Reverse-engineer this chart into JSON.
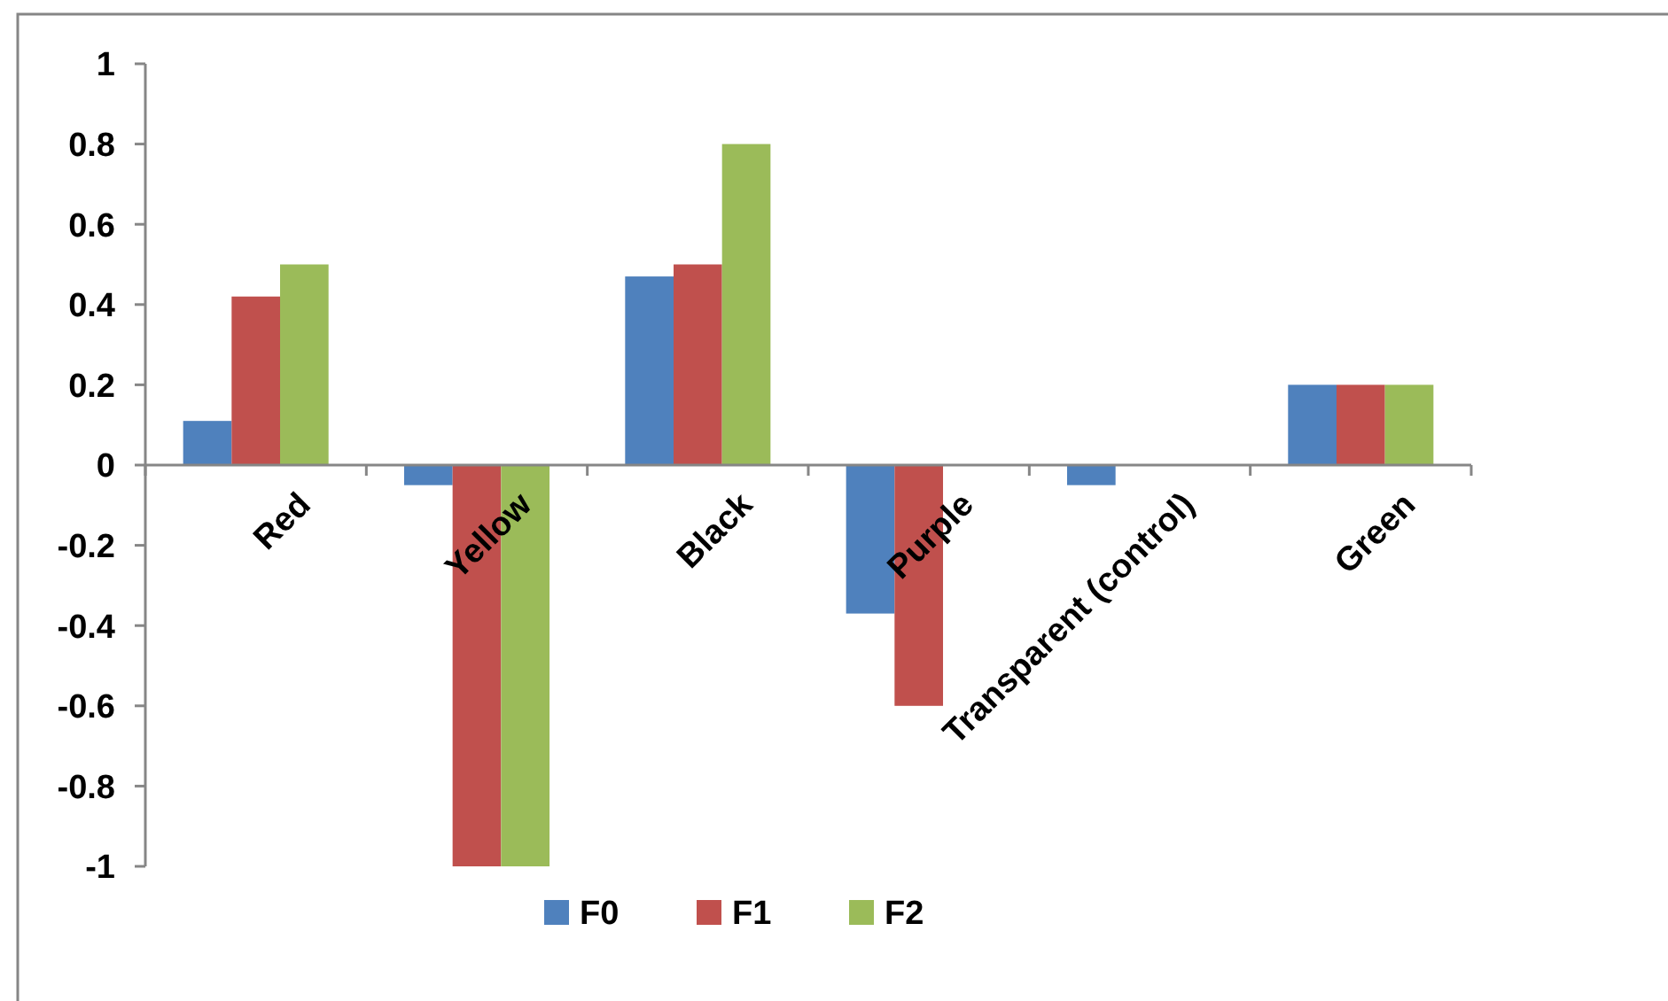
{
  "chart_data": {
    "type": "bar",
    "categories": [
      "Red",
      "Yellow",
      "Black",
      "Purple",
      "Transparent (control)",
      "Green"
    ],
    "series": [
      {
        "name": "F0",
        "color": "#4f81bd",
        "values": [
          0.11,
          -0.05,
          0.47,
          -0.37,
          -0.05,
          0.2
        ]
      },
      {
        "name": "F1",
        "color": "#c0504d",
        "values": [
          0.42,
          -1,
          0.5,
          -0.6,
          0,
          0.2
        ]
      },
      {
        "name": "F2",
        "color": "#9bbb59",
        "values": [
          0.5,
          -1,
          0.8,
          0,
          0,
          0.2
        ]
      }
    ],
    "ylim": [
      -1,
      1
    ],
    "yticks": [
      -1,
      -0.8,
      -0.6,
      -0.4,
      -0.2,
      0,
      0.2,
      0.4,
      0.6,
      0.8,
      1
    ],
    "grid": false,
    "legend": "bottom"
  }
}
